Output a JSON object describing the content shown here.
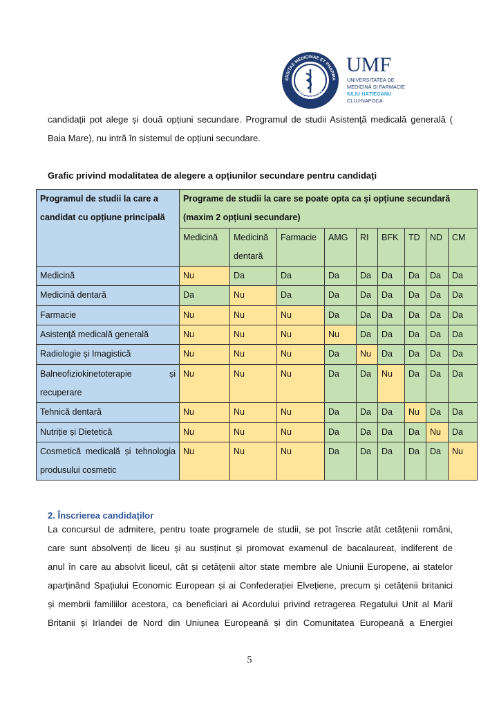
{
  "logo": {
    "seal": {
      "top": "UNIVERSITAS MEDICINAE ET PHARMACIAE",
      "bottom": "NAPOCENSIS"
    },
    "abbr": "UMF",
    "lines": [
      "UNIVERSITATEA DE",
      "MEDICINĂ ȘI FARMACIE",
      "IULIU HAȚIEGANU",
      "CLUJ-NAPOCA"
    ]
  },
  "intro": {
    "lines": [
      "candidații pot alege și două opțiuni secundare. Programul de studii Asistenţă medicală generală (",
      "Baia Mare), nu intră în sistemul de opțiuni secundare."
    ]
  },
  "caption": "Grafic privind modalitatea de alegere a opțiunilor secundare pentru candidați",
  "table": {
    "header": [
      {
        "lines": [
          "Programul de studii la care a",
          "candidat cu opțiune principală"
        ]
      },
      {
        "lines": [
          "Programe de studii la care se poate opta ca și opțiune secundară",
          "(maxim 2 opțiuni secundare)"
        ]
      }
    ],
    "columns": [
      "Medicină",
      "Medicină dentară",
      "Farmacie",
      "AMG",
      "RI",
      "BFK",
      "TD",
      "ND",
      "CM"
    ],
    "cell_colors": {
      "Nu": "#ffe599",
      "Da": "#c5e0b3"
    },
    "rows": [
      {
        "name": "Medicină",
        "values": [
          "Nu",
          "Da",
          "Da",
          "Da",
          "Da",
          "Da",
          "Da",
          "Da",
          "Da"
        ]
      },
      {
        "name": "Medicină dentară",
        "values": [
          "Da",
          "Nu",
          "Da",
          "Da",
          "Da",
          "Da",
          "Da",
          "Da",
          "Da"
        ]
      },
      {
        "name": "Farmacie",
        "values": [
          "Nu",
          "Nu",
          "Nu",
          "Da",
          "Da",
          "Da",
          "Da",
          "Da",
          "Da"
        ]
      },
      {
        "name": "Asistenţă medicală generală",
        "values": [
          "Nu",
          "Nu",
          "Nu",
          "Nu",
          "Da",
          "Da",
          "Da",
          "Da",
          "Da"
        ]
      },
      {
        "name": "Radiologie și Imagistică",
        "values": [
          "Nu",
          "Nu",
          "Nu",
          "Da",
          "Nu",
          "Da",
          "Da",
          "Da",
          "Da"
        ]
      },
      {
        "name": "Balneofiziokinetoterapie și recuperare",
        "values": [
          "Nu",
          "Nu",
          "Nu",
          "Da",
          "Da",
          "Nu",
          "Da",
          "Da",
          "Da"
        ]
      },
      {
        "name": "Tehnică dentară",
        "values": [
          "Nu",
          "Nu",
          "Nu",
          "Da",
          "Da",
          "Da",
          "Nu",
          "Da",
          "Da"
        ]
      },
      {
        "name": "Nutriție și Dietetică",
        "values": [
          "Nu",
          "Nu",
          "Nu",
          "Da",
          "Da",
          "Da",
          "Da",
          "Nu",
          "Da"
        ]
      },
      {
        "name": "Cosmetică medicală și tehnologia produsului cosmetic",
        "values": [
          "Nu",
          "Nu",
          "Nu",
          "Da",
          "Da",
          "Da",
          "Da",
          "Da",
          "Nu"
        ]
      }
    ]
  },
  "section": {
    "heading": "2. Înscrierea candidaților",
    "lines": [
      "La concursul de admitere, pentru toate programele de studii, se pot înscrie atât cetățenii români,",
      "care sunt absolvenți de liceu și au susținut și promovat examenul de bacalaureat, indiferent de",
      "anul în care au absolvit liceul, cât și cetățenii altor state membre ale Uniunii Europene, ai statelor",
      "aparținând Spațiului Economic European și ai Confederației Elvețiene, precum și cetățenii britanici",
      "și membrii familiilor acestora, ca beneficiari ai Acordului privind retragerea Regatului Unit al Marii",
      "Britanii și Irlandei de Nord din Uniunea Europeană și din Comunitatea Europeană a Energiei"
    ]
  },
  "page_number": "5"
}
